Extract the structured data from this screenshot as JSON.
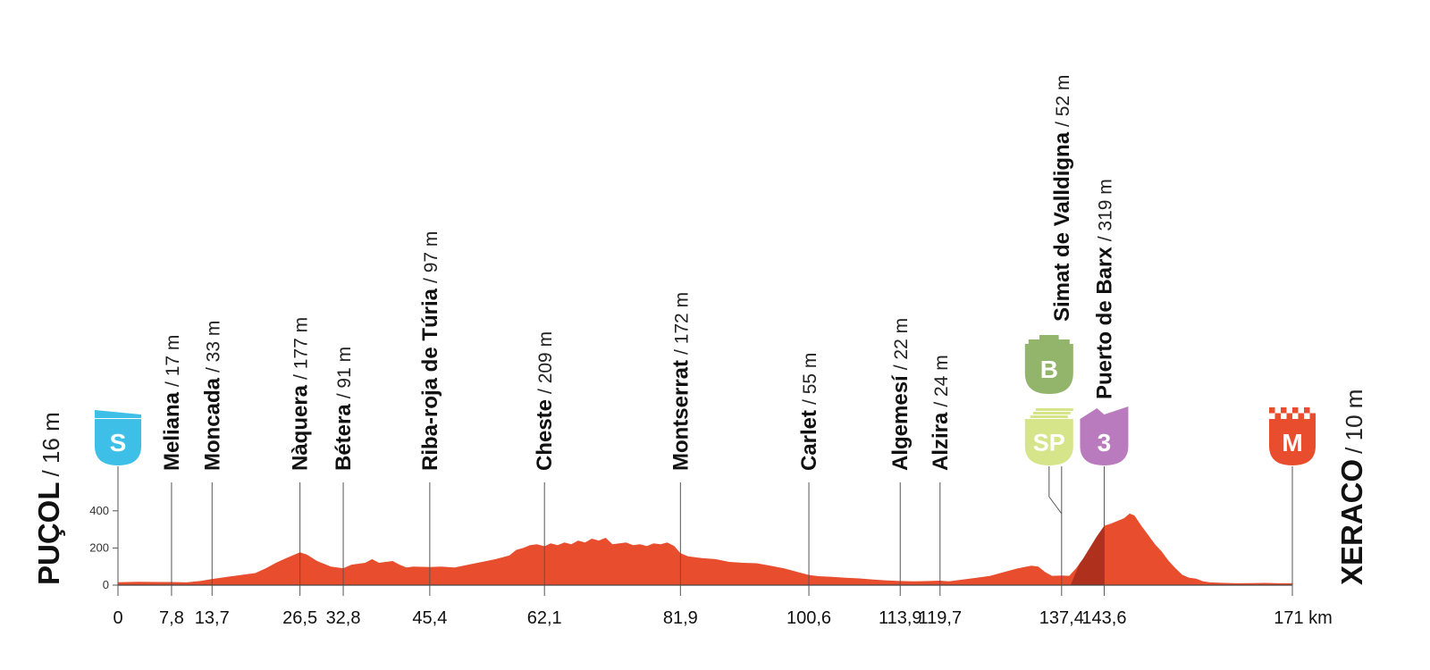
{
  "chart_data": {
    "type": "area",
    "x_unit": "km",
    "y_ticks": [
      0,
      200,
      400
    ],
    "ylim": [
      0,
      450
    ],
    "xlim": [
      0,
      171
    ],
    "start": {
      "name": "PUÇOL",
      "elevation_text": "/ 16 m",
      "km": 0,
      "badge": "S",
      "badge_color": "#3DBFE8"
    },
    "finish": {
      "name": "XERACO",
      "elevation_text": "/ 10 m",
      "km": 171,
      "badge": "M",
      "badge_color": "#E84E2E"
    },
    "places": [
      {
        "name": "Meliana",
        "elevation_text": "/ 17 m",
        "km": 7.8,
        "km_label": "7,8"
      },
      {
        "name": "Moncada",
        "elevation_text": "/ 33 m",
        "km": 13.7,
        "km_label": "13,7"
      },
      {
        "name": "Nàquera",
        "elevation_text": "/ 177 m",
        "km": 26.5,
        "km_label": "26,5"
      },
      {
        "name": "Bétera",
        "elevation_text": "/ 91 m",
        "km": 32.8,
        "km_label": "32,8"
      },
      {
        "name": "Riba-roja de Túria",
        "elevation_text": "/ 97 m",
        "km": 45.4,
        "km_label": "45,4"
      },
      {
        "name": "Cheste",
        "elevation_text": "/ 209 m",
        "km": 62.1,
        "km_label": "62,1"
      },
      {
        "name": "Montserrat",
        "elevation_text": "/ 172 m",
        "km": 81.9,
        "km_label": "81,9"
      },
      {
        "name": "Carlet",
        "elevation_text": "/ 55 m",
        "km": 100.6,
        "km_label": "100,6"
      },
      {
        "name": "Algemesí",
        "elevation_text": "/ 22 m",
        "km": 113.9,
        "km_label": "113,9"
      },
      {
        "name": "Alzira",
        "elevation_text": "/ 24 m",
        "km": 119.7,
        "km_label": "119,7"
      },
      {
        "name": "Simat de Valldigna",
        "elevation_text": "/ 52 m",
        "km": 137.4,
        "km_label": "137,4",
        "badges": [
          "B",
          "SP"
        ]
      },
      {
        "name": "Puerto de Barx",
        "elevation_text": "/ 319 m",
        "km": 143.6,
        "km_label": "143,6",
        "badges": [
          "3"
        ]
      }
    ],
    "finish_km_label": "171 km",
    "start_km_label": "0",
    "badges": {
      "B": {
        "text": "B",
        "color": "#93B56B",
        "text_color": "#ffffff"
      },
      "SP": {
        "text": "SP",
        "color": "#D6E58A",
        "text_color": "#111111"
      },
      "3": {
        "text": "3",
        "color": "#B97BBE",
        "text_color": "#ffffff"
      }
    },
    "profile_color": "#E84E2E",
    "climb_shade_color": "#B0301E",
    "climb_shade_range_km": [
      137.4,
      143.6
    ],
    "profile": [
      [
        0,
        16
      ],
      [
        3,
        18
      ],
      [
        6,
        17
      ],
      [
        7.8,
        17
      ],
      [
        10,
        15
      ],
      [
        12,
        22
      ],
      [
        13.7,
        33
      ],
      [
        15,
        40
      ],
      [
        17,
        50
      ],
      [
        19,
        60
      ],
      [
        20,
        65
      ],
      [
        21.5,
        90
      ],
      [
        23,
        120
      ],
      [
        24.5,
        145
      ],
      [
        26.5,
        177
      ],
      [
        27.5,
        165
      ],
      [
        29,
        130
      ],
      [
        31,
        100
      ],
      [
        32.8,
        91
      ],
      [
        34,
        110
      ],
      [
        36,
        120
      ],
      [
        37,
        140
      ],
      [
        38,
        120
      ],
      [
        40,
        130
      ],
      [
        41,
        110
      ],
      [
        42,
        95
      ],
      [
        43,
        100
      ],
      [
        45.4,
        97
      ],
      [
        47,
        100
      ],
      [
        49,
        95
      ],
      [
        51,
        110
      ],
      [
        53,
        125
      ],
      [
        55,
        140
      ],
      [
        57,
        160
      ],
      [
        58,
        190
      ],
      [
        59,
        200
      ],
      [
        60,
        215
      ],
      [
        61,
        220
      ],
      [
        62.1,
        209
      ],
      [
        63,
        225
      ],
      [
        64,
        215
      ],
      [
        65,
        230
      ],
      [
        66,
        220
      ],
      [
        67,
        240
      ],
      [
        68,
        230
      ],
      [
        69,
        250
      ],
      [
        70,
        240
      ],
      [
        71,
        255
      ],
      [
        72,
        220
      ],
      [
        73,
        225
      ],
      [
        74,
        230
      ],
      [
        75,
        215
      ],
      [
        76,
        220
      ],
      [
        77,
        210
      ],
      [
        78,
        225
      ],
      [
        79,
        220
      ],
      [
        80,
        230
      ],
      [
        81,
        210
      ],
      [
        81.9,
        172
      ],
      [
        83,
        155
      ],
      [
        85,
        145
      ],
      [
        87,
        140
      ],
      [
        89,
        125
      ],
      [
        91,
        120
      ],
      [
        93,
        118
      ],
      [
        95,
        105
      ],
      [
        97,
        90
      ],
      [
        99,
        70
      ],
      [
        100.6,
        55
      ],
      [
        102,
        48
      ],
      [
        104,
        44
      ],
      [
        106,
        40
      ],
      [
        108,
        36
      ],
      [
        110,
        30
      ],
      [
        112,
        25
      ],
      [
        113.9,
        22
      ],
      [
        116,
        20
      ],
      [
        118,
        22
      ],
      [
        119.7,
        24
      ],
      [
        121,
        20
      ],
      [
        123,
        30
      ],
      [
        125,
        40
      ],
      [
        127,
        50
      ],
      [
        129,
        70
      ],
      [
        131,
        90
      ],
      [
        133,
        105
      ],
      [
        134,
        100
      ],
      [
        135,
        70
      ],
      [
        136,
        50
      ],
      [
        137.4,
        52
      ],
      [
        138.5,
        50
      ],
      [
        139.5,
        90
      ],
      [
        140.5,
        140
      ],
      [
        141.5,
        200
      ],
      [
        142.5,
        260
      ],
      [
        143.6,
        319
      ],
      [
        144.5,
        330
      ],
      [
        145.5,
        345
      ],
      [
        146.5,
        360
      ],
      [
        147.3,
        385
      ],
      [
        148,
        375
      ],
      [
        149,
        320
      ],
      [
        150,
        270
      ],
      [
        151,
        220
      ],
      [
        152,
        180
      ],
      [
        153,
        130
      ],
      [
        154,
        90
      ],
      [
        155,
        55
      ],
      [
        156,
        40
      ],
      [
        157,
        35
      ],
      [
        158,
        20
      ],
      [
        159,
        15
      ],
      [
        161,
        12
      ],
      [
        163,
        10
      ],
      [
        165,
        11
      ],
      [
        167,
        12
      ],
      [
        169,
        10
      ],
      [
        171,
        10
      ]
    ]
  }
}
